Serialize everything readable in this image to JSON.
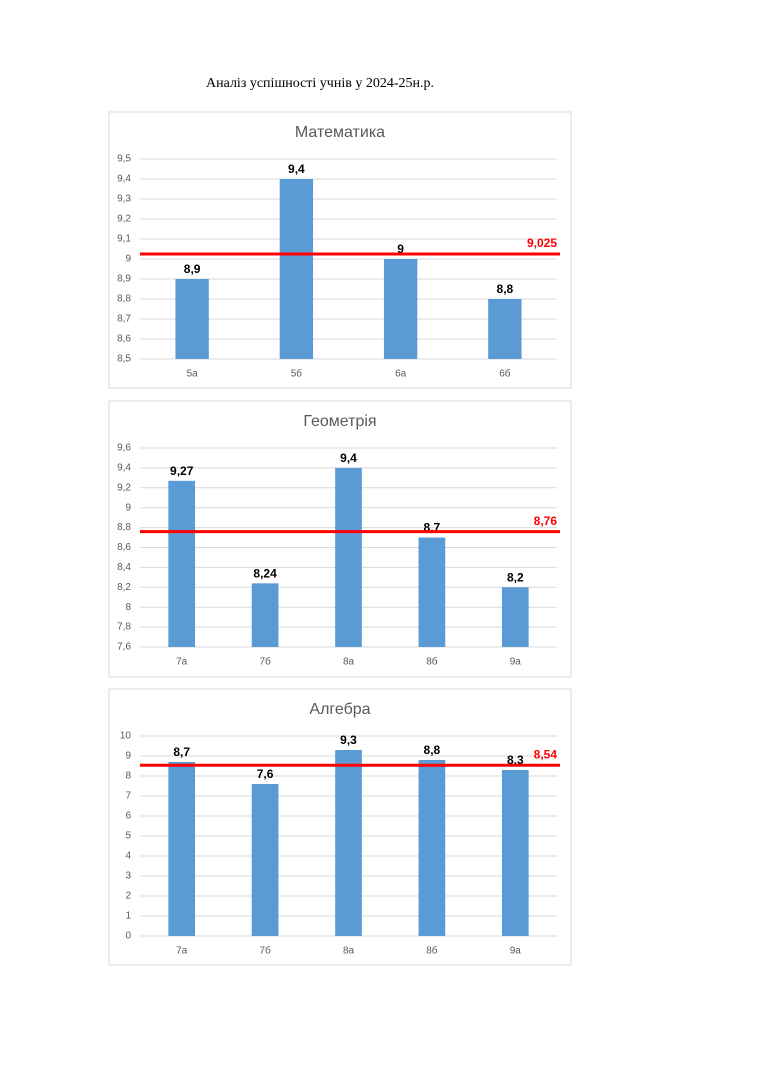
{
  "title": "Аналіз успішності учнів у 2024-25н.р.",
  "chart_data": [
    {
      "type": "bar",
      "title": "Математика",
      "categories": [
        "5а",
        "5б",
        "6а",
        "6б"
      ],
      "values": [
        8.9,
        9.4,
        9,
        8.8
      ],
      "value_labels": [
        "8,9",
        "9,4",
        "9",
        "8,8"
      ],
      "color": "#5b9bd5",
      "ylim": [
        8.5,
        9.5
      ],
      "yticks": [
        {
          "value": 8.5,
          "label": "8,5"
        },
        {
          "value": 8.6,
          "label": "8,6"
        },
        {
          "value": 8.7,
          "label": "8,7"
        },
        {
          "value": 8.8,
          "label": "8,8"
        },
        {
          "value": 8.9,
          "label": "8,9"
        },
        9,
        {
          "value": 9.1,
          "label": "9,1"
        },
        {
          "value": 9.2,
          "label": "9,2"
        },
        {
          "value": 9.3,
          "label": "9,3"
        },
        {
          "value": 9.4,
          "label": "9,4"
        },
        {
          "value": 9.5,
          "label": "9,5"
        }
      ],
      "grid": true,
      "reference_line": {
        "value": 9.025,
        "label": "9,025",
        "color": "#ff0000"
      }
    },
    {
      "type": "bar",
      "title": "Геометрія",
      "categories": [
        "7а",
        "7б",
        "8а",
        "8б",
        "9а"
      ],
      "values": [
        9.27,
        8.24,
        9.4,
        8.7,
        8.2
      ],
      "value_labels": [
        "9,27",
        "8,24",
        "9,4",
        "8,7",
        "8,2"
      ],
      "color": "#5b9bd5",
      "ylim": [
        7.6,
        9.6
      ],
      "yticks": [
        {
          "value": 7.6,
          "label": "7,6"
        },
        {
          "value": 7.8,
          "label": "7,8"
        },
        8,
        {
          "value": 8.2,
          "label": "8,2"
        },
        {
          "value": 8.4,
          "label": "8,4"
        },
        {
          "value": 8.6,
          "label": "8,6"
        },
        {
          "value": 8.8,
          "label": "8,8"
        },
        9,
        {
          "value": 9.2,
          "label": "9,2"
        },
        {
          "value": 9.4,
          "label": "9,4"
        },
        {
          "value": 9.6,
          "label": "9,6"
        }
      ],
      "grid": true,
      "reference_line": {
        "value": 8.76,
        "label": "8,76",
        "color": "#ff0000"
      }
    },
    {
      "type": "bar",
      "title": "Алгебра",
      "categories": [
        "7а",
        "7б",
        "8а",
        "8б",
        "9а"
      ],
      "values": [
        8.7,
        7.6,
        9.3,
        8.8,
        8.3
      ],
      "value_labels": [
        "8,7",
        "7,6",
        "9,3",
        "8,8",
        "8,3"
      ],
      "color": "#5b9bd5",
      "ylim": [
        0,
        10
      ],
      "yticks": [
        0,
        1,
        2,
        3,
        4,
        5,
        6,
        7,
        8,
        9,
        10
      ],
      "grid": true,
      "reference_line": {
        "value": 8.54,
        "label": "8,54",
        "color": "#ff0000"
      }
    }
  ]
}
